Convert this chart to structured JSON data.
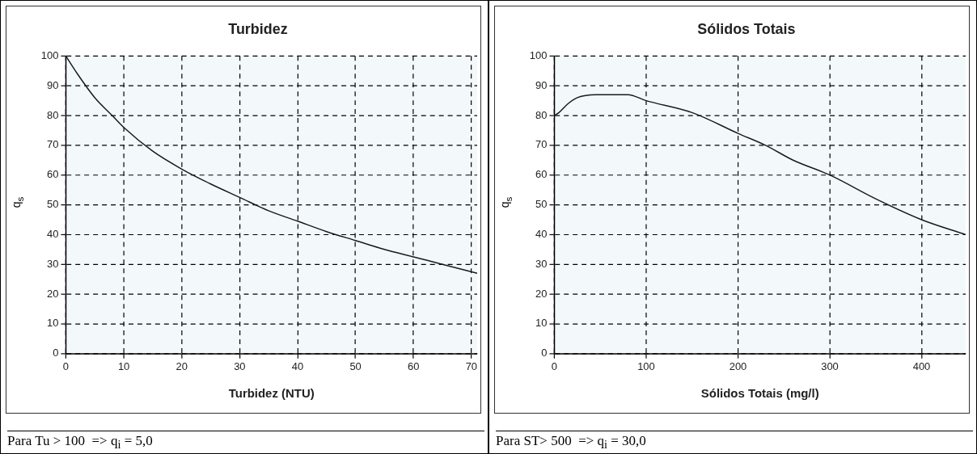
{
  "chart_data": [
    {
      "type": "line",
      "title": "Turbidez",
      "xlabel": "Turbidez (NTU)",
      "ylabel": "q$_{s}$",
      "annotations": [
        "Para Tu > 100  => q$_{i}$ = 5,0"
      ],
      "grid": true,
      "legend": false,
      "marker": "none",
      "line_style": "solid",
      "xlim": [
        0,
        71
      ],
      "xticks": [
        0,
        10,
        20,
        30,
        40,
        50,
        60,
        70
      ],
      "ylim": [
        0,
        100
      ],
      "yticks": [
        0,
        10,
        20,
        30,
        40,
        50,
        60,
        70,
        80,
        90,
        100
      ],
      "series": [
        {
          "color": "#1a1a1a",
          "x": [
            0,
            2,
            5,
            8,
            10,
            15,
            20,
            25,
            30,
            35,
            40,
            45,
            50,
            55,
            60,
            65,
            71
          ],
          "values": [
            100,
            94,
            86,
            80,
            76,
            68,
            62,
            57,
            52.5,
            48,
            44.5,
            41,
            38,
            35,
            32.5,
            30,
            27
          ]
        }
      ]
    },
    {
      "type": "line",
      "title": "Sólidos Totais",
      "xlabel": "Sólidos Totais (mg/l)",
      "ylabel": "q$_{s}$",
      "annotations": [
        "Para ST> 500  => q$_{i}$ = 30,0"
      ],
      "grid": true,
      "legend": false,
      "marker": "none",
      "line_style": "solid",
      "xlim": [
        0,
        448
      ],
      "xticks": [
        0,
        100,
        200,
        300,
        400
      ],
      "ylim": [
        0,
        100
      ],
      "yticks": [
        0,
        10,
        20,
        30,
        40,
        50,
        60,
        70,
        80,
        90,
        100
      ],
      "series": [
        {
          "color": "#1a1a1a",
          "x": [
            0,
            5,
            15,
            25,
            45,
            80,
            100,
            150,
            200,
            230,
            260,
            300,
            350,
            400,
            448
          ],
          "values": [
            80,
            81,
            84,
            86,
            87,
            87,
            85,
            81,
            74,
            70,
            65,
            60,
            52,
            45,
            40
          ]
        }
      ]
    }
  ]
}
